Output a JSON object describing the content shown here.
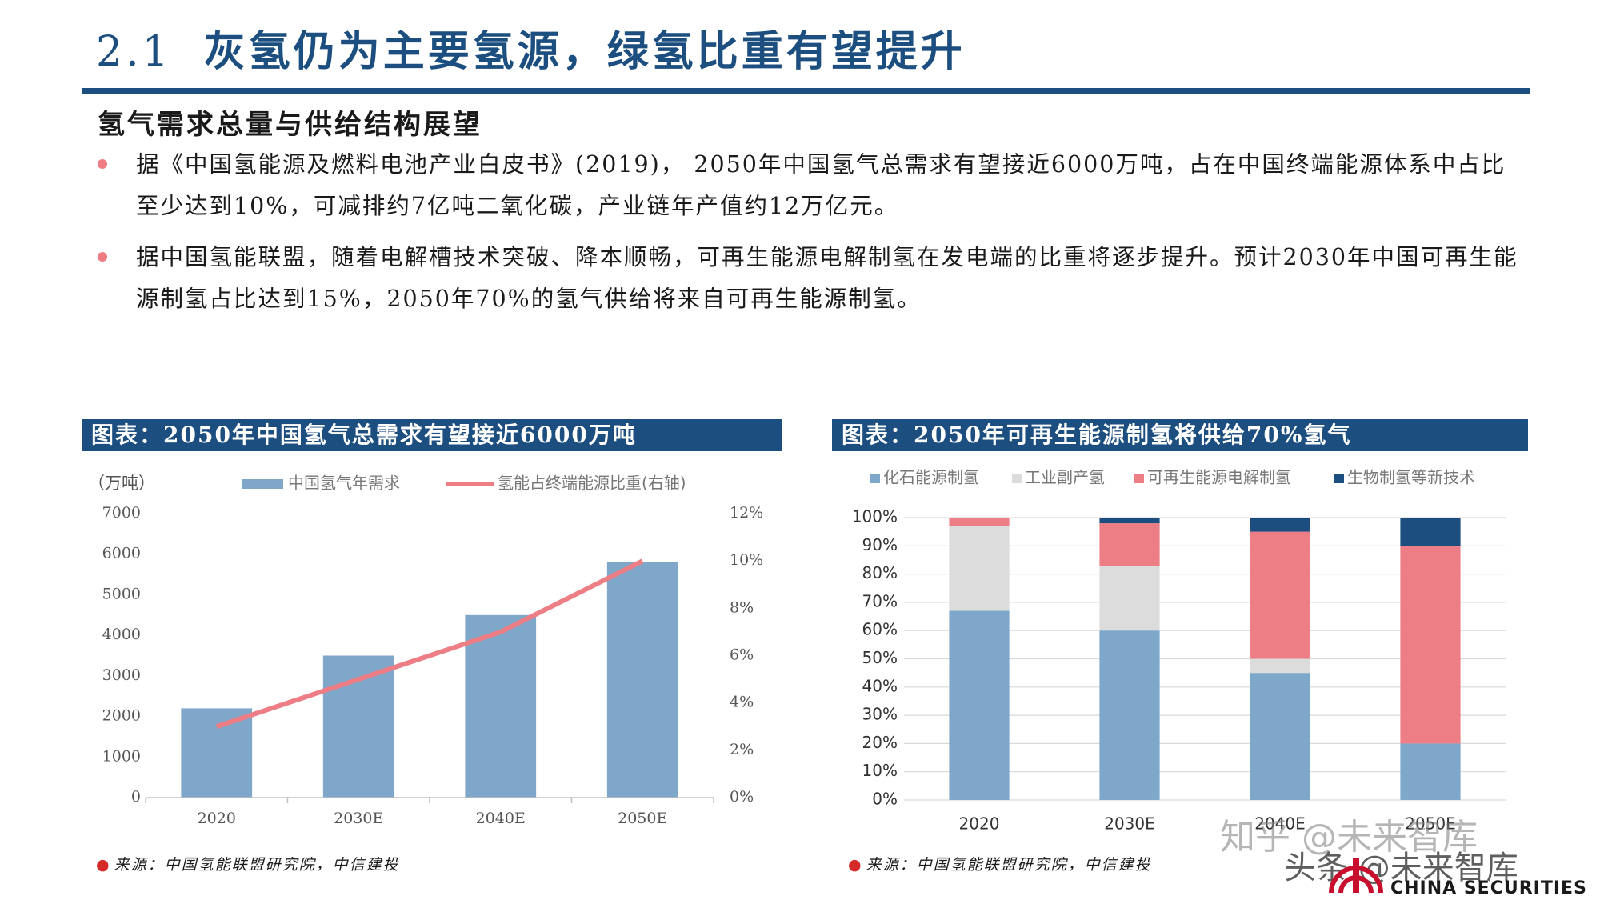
{
  "slide": {
    "number": "2.1",
    "title": "灰氢仍为主要氢源，绿氢比重有望提升"
  },
  "section_heading": "氢气需求总量与供给结构展望",
  "bullets": [
    "据《中国氢能源及燃料电池产业白皮书》(2019)， 2050年中国氢气总需求有望接近6000万吨，占在中国终端能源体系中占比至少达到10%，可减排约7亿吨二氧化碳，产业链年产值约12万亿元。",
    "据中国氢能联盟，随着电解槽技术突破、降本顺畅，可再生能源电解制氢在发电端的比重将逐步提升。预计2030年中国可再生能源制氢占比达到15%，2050年70%的氢气供给将来自可再生能源制氢。"
  ],
  "left_panel": {
    "header": "图表：2050年中国氢气总需求有望接近6000万吨",
    "source": "来源：中国氢能联盟研究院，中信建投"
  },
  "right_panel": {
    "header": "图表：2050年可再生能源制氢将供给70%氢气",
    "source": "来源：中国氢能联盟研究院，中信建投"
  },
  "chart_data": [
    {
      "type": "bar",
      "categories": [
        "2020",
        "2030E",
        "2040E",
        "2050E"
      ],
      "series": [
        {
          "name": "中国氢气年需求",
          "type": "bar",
          "axis": "left",
          "values": [
            2200,
            3500,
            4500,
            5800
          ],
          "color": "#7fa7c9"
        },
        {
          "name": "氢能占终端能源比重(右轴)",
          "type": "line",
          "axis": "right",
          "values": [
            3,
            5,
            7,
            10
          ],
          "color": "#ee7e86"
        }
      ],
      "ylabel": "（万吨）",
      "ylim": [
        0,
        7000
      ],
      "yticks": [
        "0",
        "1000",
        "2000",
        "3000",
        "4000",
        "5000",
        "6000",
        "7000"
      ],
      "y2lim": [
        0,
        12
      ],
      "y2ticks": [
        "0%",
        "2%",
        "4%",
        "6%",
        "8%",
        "10%",
        "12%"
      ],
      "legend": "top",
      "grid": false
    },
    {
      "type": "bar",
      "stacked": true,
      "categories": [
        "2020",
        "2030E",
        "2040E",
        "2050E"
      ],
      "series": [
        {
          "name": "化石能源制氢",
          "values": [
            67,
            60,
            45,
            20
          ],
          "color": "#7fa7c9"
        },
        {
          "name": "工业副产氢",
          "values": [
            30,
            23,
            5,
            0
          ],
          "color": "#dcdcdc"
        },
        {
          "name": "可再生能源电解制氢",
          "values": [
            3,
            15,
            45,
            70
          ],
          "color": "#ee7e86"
        },
        {
          "name": "生物制氢等新技术",
          "values": [
            0,
            2,
            5,
            10
          ],
          "color": "#1c4e80"
        }
      ],
      "ylim": [
        0,
        100
      ],
      "yticks": [
        "0%",
        "10%",
        "20%",
        "30%",
        "40%",
        "50%",
        "60%",
        "70%",
        "80%",
        "90%",
        "100%"
      ],
      "legend": "top",
      "grid": true
    }
  ],
  "watermarks": {
    "zhihu": "知乎 @未来智库",
    "toutiao": "头条 @未来智库"
  },
  "logo": {
    "text": "CHINA SECURITIES",
    "mark_color": "#c8102e"
  }
}
